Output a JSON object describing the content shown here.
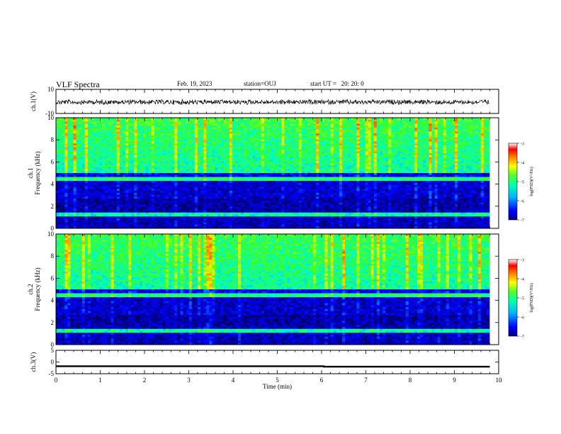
{
  "header": {
    "title": "VLF Spectra",
    "date": "Feb. 19, 2023",
    "station": "station=OUJ",
    "start": "start UT =   20: 20: 0"
  },
  "chart_data": [
    {
      "type": "line",
      "panel": "ch1-waveform",
      "ylabel": "ch.1(V)",
      "ylim": [
        -10,
        10
      ],
      "yticks": [
        "10",
        "-10"
      ],
      "xlim": [
        0,
        10
      ],
      "series": [
        {
          "values_description_level": 0
        }
      ]
    },
    {
      "type": "heatmap",
      "panel": "ch1-spectrogram",
      "ylabel": "ch.1\nFrequency (kHz)",
      "ylim": [
        0,
        10
      ],
      "yticks": [
        "0",
        "2",
        "4",
        "6",
        "8",
        "10"
      ],
      "xlim": [
        0,
        10
      ],
      "colorbar": {
        "label": "log(PSD)(V²/Hz)",
        "range": [
          -7,
          -3
        ],
        "ticks": [
          "-3",
          "-4",
          "-5",
          "-6",
          "-7"
        ]
      }
    },
    {
      "type": "heatmap",
      "panel": "ch2-spectrogram",
      "ylabel": "ch.2\nFrequency (kHz)",
      "ylim": [
        0,
        10
      ],
      "yticks": [
        "0",
        "2",
        "4",
        "6",
        "8",
        "10"
      ],
      "xlim": [
        0,
        10
      ],
      "colorbar": {
        "label": "log(PSD)(V²/Hz)",
        "range": [
          -7,
          -3
        ],
        "ticks": [
          "-3",
          "-4",
          "-5",
          "-6",
          "-7"
        ]
      }
    },
    {
      "type": "line",
      "panel": "ch3-signal",
      "ylabel": "ch.3(V)",
      "ylim": [
        -5,
        5
      ],
      "yticks": [
        "5",
        "0",
        "-5"
      ],
      "xlim": [
        0,
        10
      ],
      "xlabel": "Time (min)",
      "xticks": [
        "0",
        "1",
        "2",
        "3",
        "4",
        "5",
        "6",
        "7",
        "8",
        "9",
        "10"
      ],
      "series": [
        {
          "x": [
            0,
            6.05,
            6.05,
            9.8
          ],
          "y": [
            -1.8,
            -1.8,
            -2.0,
            -2.0
          ]
        }
      ]
    }
  ]
}
